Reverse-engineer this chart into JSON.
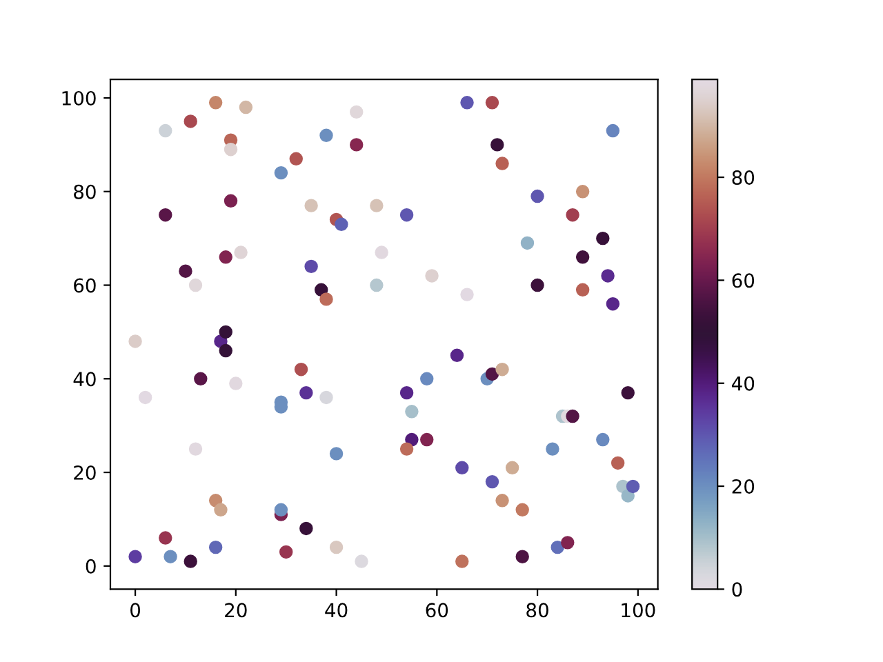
{
  "chart_data": {
    "type": "scatter",
    "marker": "circle",
    "grid": false,
    "x": [
      6,
      11,
      16,
      19,
      19,
      22,
      38,
      32,
      44,
      44,
      29,
      66,
      71,
      72,
      73,
      95,
      6,
      19,
      35,
      40,
      41,
      48,
      54,
      80,
      78,
      87,
      89,
      10,
      12,
      18,
      21,
      35,
      37,
      38,
      49,
      48,
      59,
      66,
      80,
      89,
      89,
      93,
      94,
      95,
      0,
      17,
      18,
      18,
      13,
      20,
      2,
      33,
      34,
      38,
      29,
      29,
      12,
      40,
      54,
      55,
      58,
      64,
      70,
      71,
      73,
      55,
      58,
      54,
      85,
      86,
      87,
      83,
      98,
      93,
      16,
      17,
      29,
      29,
      6,
      0,
      7,
      11,
      16,
      34,
      30,
      40,
      45,
      65,
      71,
      73,
      75,
      77,
      65,
      77,
      84,
      86,
      96,
      97,
      98,
      99
    ],
    "values": [
      93,
      95,
      99,
      91,
      89,
      98,
      92,
      87,
      97,
      90,
      84,
      99,
      99,
      90,
      86,
      93,
      75,
      78,
      77,
      74,
      73,
      77,
      75,
      79,
      69,
      75,
      80,
      63,
      60,
      66,
      67,
      64,
      59,
      57,
      67,
      60,
      62,
      58,
      60,
      66,
      59,
      70,
      62,
      56,
      48,
      48,
      50,
      46,
      40,
      39,
      36,
      42,
      37,
      36,
      35,
      34,
      25,
      24,
      37,
      33,
      40,
      45,
      40,
      41,
      42,
      27,
      27,
      25,
      32,
      32,
      32,
      25,
      37,
      27,
      14,
      12,
      11,
      12,
      6,
      2,
      2,
      1,
      4,
      8,
      3,
      4,
      1,
      21,
      18,
      14,
      21,
      12,
      1,
      2,
      4,
      5,
      22,
      17,
      15,
      17
    ],
    "cvalues": [
      5,
      72,
      82,
      77,
      95,
      90,
      20,
      74,
      97,
      65,
      20,
      30,
      72,
      52,
      76,
      22,
      58,
      63,
      92,
      74,
      28,
      92,
      30,
      30,
      13,
      70,
      84,
      57,
      97,
      64,
      96,
      32,
      52,
      78,
      98,
      8,
      95,
      99,
      53,
      54,
      76,
      52,
      37,
      38,
      94,
      38,
      51,
      51,
      58,
      98,
      99,
      73,
      36,
      3,
      20,
      20,
      98,
      20,
      38,
      10,
      21,
      38,
      20,
      57,
      88,
      40,
      64,
      78,
      9,
      98,
      57,
      20,
      53,
      21,
      83,
      87,
      63,
      20,
      68,
      34,
      20,
      53,
      27,
      52,
      68,
      93,
      2,
      32,
      30,
      84,
      88,
      80,
      79,
      56,
      26,
      64,
      76,
      9,
      12,
      29
    ],
    "clim": [
      0,
      99
    ],
    "cticks": [
      0,
      20,
      40,
      60,
      80
    ],
    "xlim": [
      -4.95,
      103.95
    ],
    "ylim": [
      -4.95,
      103.95
    ],
    "xticks": [
      0,
      20,
      40,
      60,
      80,
      100
    ],
    "yticks": [
      0,
      20,
      40,
      60,
      80,
      100
    ]
  }
}
